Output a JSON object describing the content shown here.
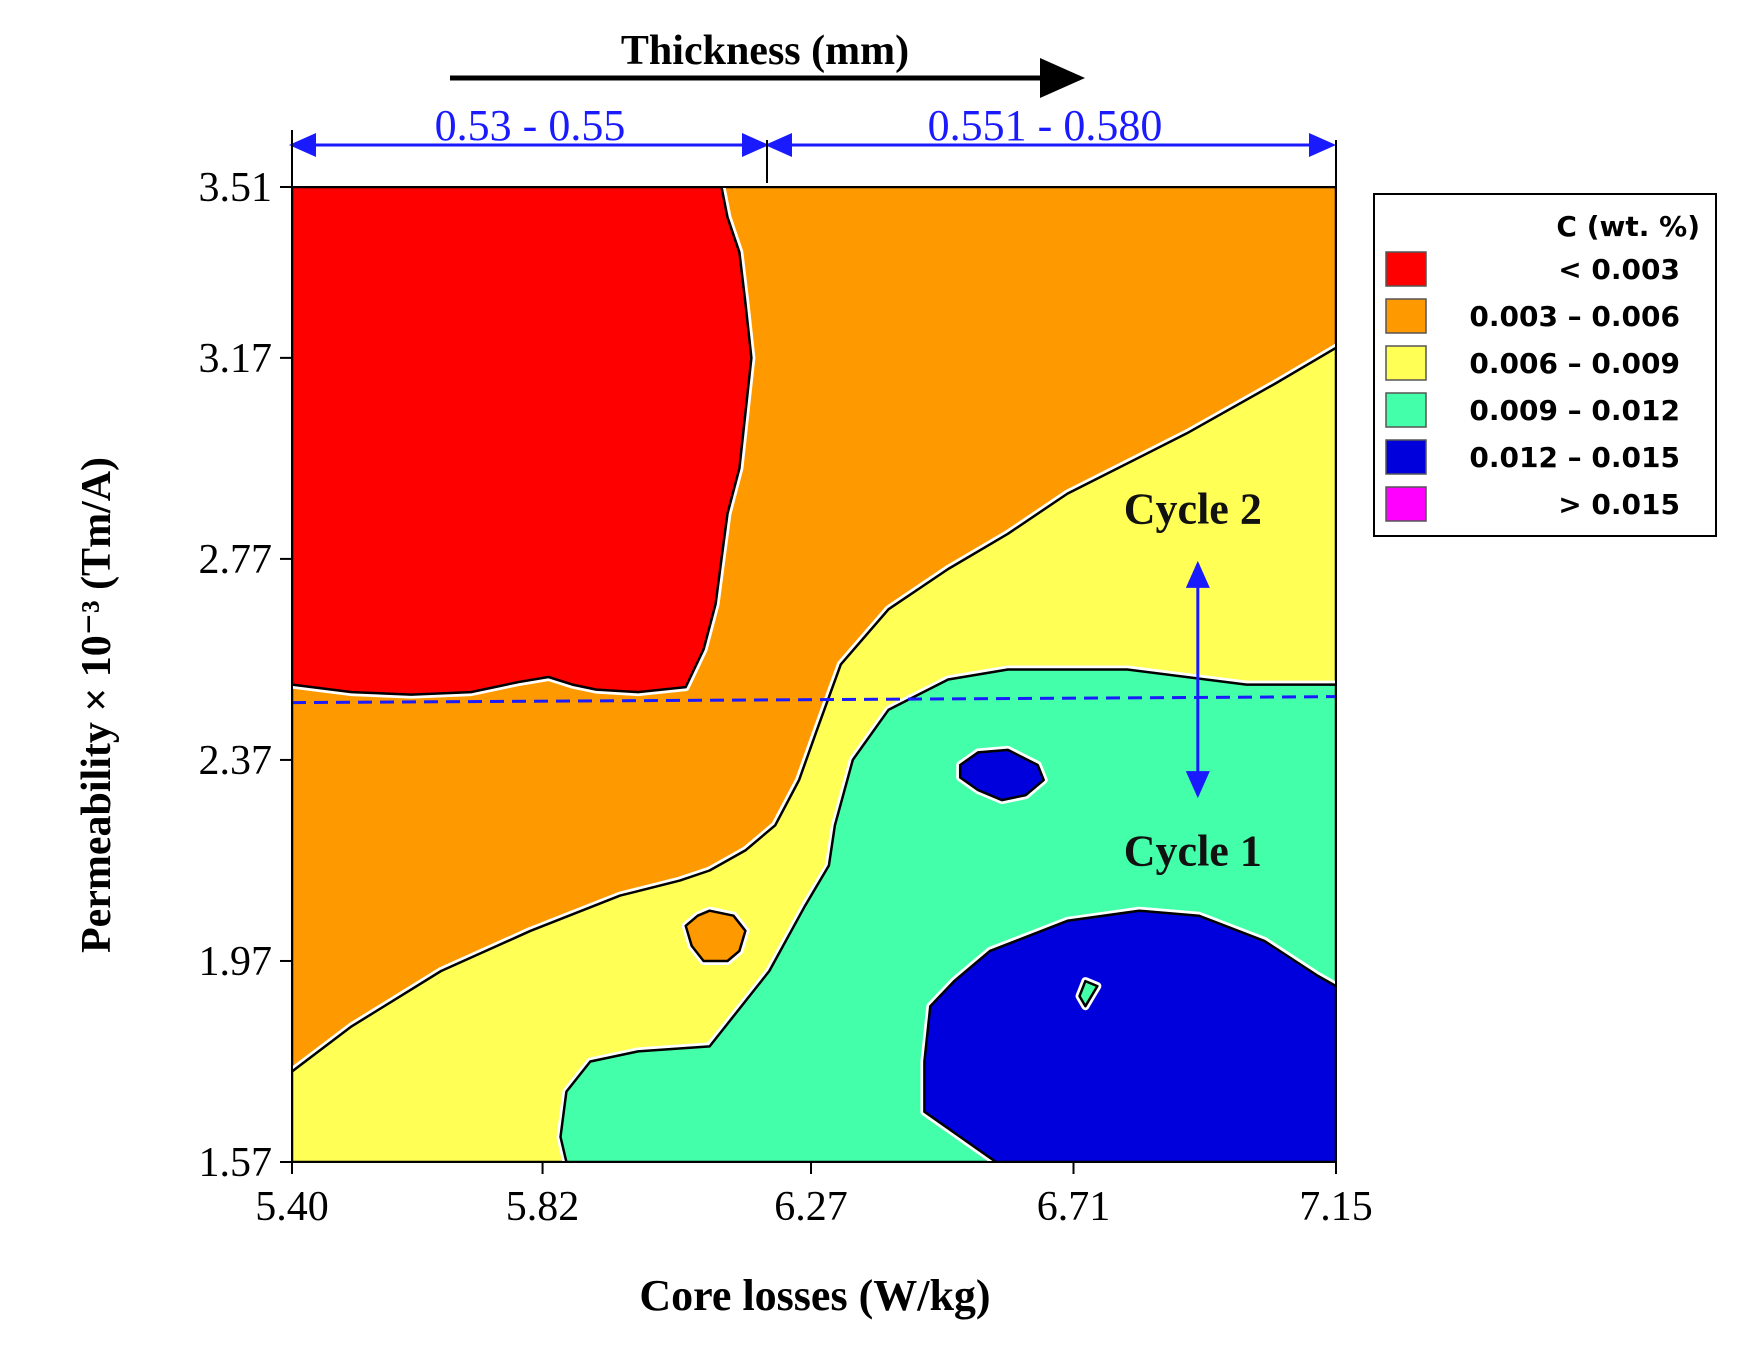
{
  "chart_data": {
    "type": "contour",
    "title": "",
    "xlabel": "Core losses (W/kg)",
    "ylabel": "Permeability × 10⁻³ (Tm/A)",
    "x_ticks": [
      "5.40",
      "5.82",
      "6.27",
      "6.71",
      "7.15"
    ],
    "y_ticks": [
      "1.57",
      "1.97",
      "2.37",
      "2.77",
      "3.17",
      "3.51"
    ],
    "xlim": [
      5.4,
      7.15
    ],
    "ylim": [
      1.57,
      3.51
    ],
    "grid": false,
    "legend": {
      "placement": "right",
      "title": "C (wt. %)",
      "entries": [
        {
          "label": "< 0.003",
          "range": [
            null,
            0.003
          ],
          "color": "#ff0000"
        },
        {
          "label": "0.003 – 0.006",
          "range": [
            0.003,
            0.006
          ],
          "color": "#ff9900"
        },
        {
          "label": "0.006 – 0.009",
          "range": [
            0.006,
            0.009
          ],
          "color": "#ffff55"
        },
        {
          "label": "0.009 – 0.012",
          "range": [
            0.009,
            0.012
          ],
          "color": "#44ffaa"
        },
        {
          "label": "0.012 – 0.015",
          "range": [
            0.012,
            0.015
          ],
          "color": "#0000dd"
        },
        {
          "label": "> 0.015",
          "range": [
            0.015,
            null
          ],
          "color": "#ff00ff"
        }
      ]
    },
    "thickness_axis": {
      "label": "Thickness (mm)",
      "ranges": [
        {
          "label": "0.53 - 0.55",
          "x_from": 5.4,
          "x_to": 6.2
        },
        {
          "label": "0.551 - 0.580",
          "x_from": 6.2,
          "x_to": 7.15
        }
      ]
    },
    "annotations": [
      {
        "text": "Cycle 2",
        "x": 6.91,
        "y": 2.84
      },
      {
        "text": "Cycle 1",
        "x": 6.91,
        "y": 2.16
      }
    ],
    "threshold_line_y": 2.49,
    "regions": [
      {
        "level": "0.003 – 0.006",
        "color": "#ff9900",
        "points": [
          [
            5.4,
            3.51
          ],
          [
            7.15,
            3.51
          ],
          [
            7.15,
            1.57
          ],
          [
            5.4,
            1.57
          ]
        ]
      },
      {
        "level": "< 0.003",
        "color": "#ff0000",
        "points": [
          [
            5.4,
            3.51
          ],
          [
            6.12,
            3.51
          ],
          [
            6.13,
            3.45
          ],
          [
            6.15,
            3.38
          ],
          [
            6.16,
            3.28
          ],
          [
            6.17,
            3.17
          ],
          [
            6.16,
            3.06
          ],
          [
            6.15,
            2.95
          ],
          [
            6.13,
            2.86
          ],
          [
            6.12,
            2.77
          ],
          [
            6.11,
            2.68
          ],
          [
            6.09,
            2.59
          ],
          [
            6.06,
            2.515
          ],
          [
            5.98,
            2.505
          ],
          [
            5.91,
            2.51
          ],
          [
            5.87,
            2.52
          ],
          [
            5.83,
            2.535
          ],
          [
            5.78,
            2.525
          ],
          [
            5.7,
            2.505
          ],
          [
            5.6,
            2.5
          ],
          [
            5.5,
            2.505
          ],
          [
            5.4,
            2.52
          ]
        ]
      },
      {
        "level": "0.006 – 0.009",
        "color": "#ffff55",
        "points": [
          [
            5.4,
            1.57
          ],
          [
            5.4,
            1.75
          ],
          [
            5.5,
            1.84
          ],
          [
            5.65,
            1.95
          ],
          [
            5.8,
            2.03
          ],
          [
            5.95,
            2.1
          ],
          [
            6.05,
            2.13
          ],
          [
            6.1,
            2.15
          ],
          [
            6.16,
            2.19
          ],
          [
            6.21,
            2.24
          ],
          [
            6.25,
            2.33
          ],
          [
            6.28,
            2.43
          ],
          [
            6.32,
            2.56
          ],
          [
            6.4,
            2.67
          ],
          [
            6.5,
            2.75
          ],
          [
            6.6,
            2.82
          ],
          [
            6.7,
            2.9
          ],
          [
            6.9,
            3.02
          ],
          [
            7.05,
            3.12
          ],
          [
            7.15,
            3.19
          ],
          [
            7.15,
            1.57
          ]
        ]
      },
      {
        "level": "0.003 – 0.006",
        "color": "#ff9900",
        "points": [
          [
            6.08,
            2.06
          ],
          [
            6.1,
            2.07
          ],
          [
            6.14,
            2.06
          ],
          [
            6.16,
            2.03
          ],
          [
            6.15,
            1.99
          ],
          [
            6.13,
            1.97
          ],
          [
            6.09,
            1.97
          ],
          [
            6.07,
            2.0
          ],
          [
            6.06,
            2.04
          ]
        ]
      },
      {
        "level": "0.009 – 0.012",
        "color": "#44ffaa",
        "points": [
          [
            5.86,
            1.57
          ],
          [
            5.85,
            1.62
          ],
          [
            5.86,
            1.71
          ],
          [
            5.9,
            1.77
          ],
          [
            5.98,
            1.79
          ],
          [
            6.1,
            1.8
          ],
          [
            6.2,
            1.95
          ],
          [
            6.26,
            2.08
          ],
          [
            6.3,
            2.16
          ],
          [
            6.31,
            2.24
          ],
          [
            6.34,
            2.37
          ],
          [
            6.4,
            2.47
          ],
          [
            6.5,
            2.53
          ],
          [
            6.6,
            2.55
          ],
          [
            6.8,
            2.55
          ],
          [
            7.0,
            2.52
          ],
          [
            7.15,
            2.52
          ],
          [
            7.15,
            1.57
          ]
        ]
      },
      {
        "level": "0.012 – 0.015",
        "color": "#0000dd",
        "points": [
          [
            6.52,
            2.36
          ],
          [
            6.55,
            2.385
          ],
          [
            6.6,
            2.39
          ],
          [
            6.65,
            2.36
          ],
          [
            6.66,
            2.33
          ],
          [
            6.63,
            2.3
          ],
          [
            6.59,
            2.29
          ],
          [
            6.55,
            2.31
          ],
          [
            6.52,
            2.335
          ]
        ]
      },
      {
        "level": "0.012 – 0.015",
        "color": "#0000dd",
        "points": [
          [
            6.46,
            1.77
          ],
          [
            6.47,
            1.88
          ],
          [
            6.51,
            1.93
          ],
          [
            6.57,
            1.99
          ],
          [
            6.7,
            2.05
          ],
          [
            6.82,
            2.07
          ],
          [
            6.92,
            2.06
          ],
          [
            7.03,
            2.01
          ],
          [
            7.12,
            1.94
          ],
          [
            7.15,
            1.92
          ],
          [
            7.15,
            1.57
          ],
          [
            6.58,
            1.57
          ],
          [
            6.52,
            1.62
          ],
          [
            6.46,
            1.67
          ]
        ]
      },
      {
        "level": "0.009 – 0.012",
        "color": "#44ffaa",
        "points": [
          [
            6.73,
            1.93
          ],
          [
            6.75,
            1.92
          ],
          [
            6.74,
            1.9
          ],
          [
            6.73,
            1.88
          ],
          [
            6.72,
            1.9
          ]
        ]
      }
    ]
  }
}
